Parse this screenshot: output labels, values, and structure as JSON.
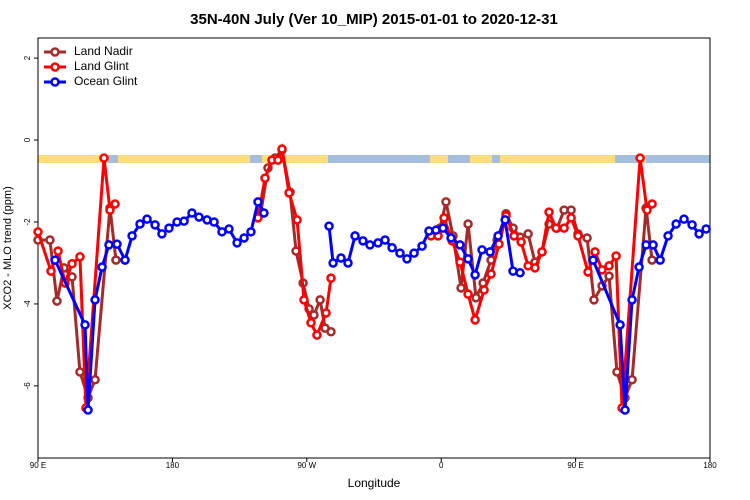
{
  "chart_data": {
    "type": "line",
    "title": "35N-40N July (Ver 10_MIP)   2015-01-01 to 2020-12-31",
    "xlabel": "Longitude",
    "ylabel": "XCO2 - MLO trend (ppm)",
    "xlim": [
      90,
      540
    ],
    "ylim": [
      -7.76,
      2.49
    ],
    "xticks": [
      {
        "value": 90,
        "label": "90 E"
      },
      {
        "value": 180,
        "label": "180"
      },
      {
        "value": 270,
        "label": "90 W"
      },
      {
        "value": 360,
        "label": "0"
      },
      {
        "value": 450,
        "label": "90 E"
      },
      {
        "value": 540,
        "label": "180"
      }
    ],
    "yticks": [
      -6,
      -4,
      -2,
      0,
      2
    ],
    "legend": "topleft",
    "series": [
      {
        "name": "Land Nadir",
        "color": "#a52a2a",
        "x": [
          90,
          98.0,
          102.7,
          107.4,
          112.8,
          118.1,
          123.5,
          128.2,
          138.2,
          142.2,
          null,
          239.3,
          244.0,
          248.7,
          253.4,
          258.8,
          262.8,
          267.5,
          271.5,
          274.8,
          278.9,
          282.2,
          286.2,
          null,
          353.9,
          359.2,
          363.2,
          367.9,
          373.3,
          378.0,
          383.3,
          388.0,
          393.4,
          397.4,
          403.4,
          408.1,
          412.8,
          418.2,
          422.8,
          427.5,
          432.2,
          437.6,
          442.3,
          447.0,
          451.6,
          457.7,
          462.3,
          467.7,
          472.4,
          477.7,
          483.1,
          487.8,
          497.2,
          501.2
        ],
        "values": [
          -2.44,
          -2.44,
          -3.93,
          -3.12,
          -3.34,
          -5.66,
          -6.29,
          -5.85,
          -1.66,
          -2.93,
          null,
          -1.76,
          -0.68,
          -0.44,
          -0.24,
          -1.27,
          -2.71,
          -3.49,
          -4.12,
          -4.27,
          -3.9,
          -4.59,
          -4.68,
          null,
          -2.29,
          -2.15,
          -1.51,
          -2.34,
          -3.61,
          -2.05,
          -3.85,
          -3.49,
          -2.93,
          -2.44,
          -1.8,
          -2.15,
          -2.37,
          -2.29,
          -2.98,
          -2.73,
          -2.05,
          -2.15,
          -1.71,
          -1.71,
          -2.29,
          -2.39,
          -3.9,
          -3.56,
          -3.32,
          -5.66,
          -6.29,
          -5.85,
          -1.66,
          -2.93
        ]
      },
      {
        "name": "Land Glint",
        "color": "#ff0000",
        "x": [
          90,
          98.7,
          103.4,
          108.1,
          112.8,
          118.1,
          122.1,
          134.2,
          138.2,
          141.6,
          null,
          237.3,
          242.0,
          246.7,
          250.7,
          253.4,
          258.1,
          263.5,
          268.1,
          272.8,
          276.8,
          282.9,
          286.2,
          null,
          353.2,
          357.9,
          361.9,
          367.3,
          372.6,
          378.0,
          382.7,
          388.7,
          393.4,
          398.7,
          403.4,
          408.8,
          413.5,
          418.2,
          422.8,
          427.5,
          432.2,
          436.9,
          442.3,
          447.0,
          451.6,
          458.3,
          463.0,
          467.7,
          472.4,
          477.1,
          481.1,
          493.2,
          497.8,
          501.2
        ],
        "values": [
          -2.24,
          -3.2,
          -2.71,
          -3.49,
          -3.02,
          -2.85,
          -6.54,
          -0.44,
          -1.71,
          -1.56,
          null,
          -1.9,
          -0.93,
          -0.49,
          -0.49,
          -0.22,
          -1.29,
          -1.95,
          -3.9,
          -4.46,
          -4.76,
          -4.22,
          -3.37,
          null,
          -2.34,
          -2.34,
          -1.9,
          -2.46,
          -2.98,
          -3.76,
          -4.39,
          -3.66,
          -3.27,
          -2.54,
          -1.85,
          -2.34,
          -2.49,
          -3.07,
          -3.12,
          -2.73,
          -1.76,
          -2.15,
          -2.15,
          -1.9,
          -2.34,
          -3.22,
          -2.73,
          -3.17,
          -3.07,
          -2.83,
          -6.54,
          -0.44,
          -1.71,
          -1.56
        ]
      },
      {
        "name": "Ocean Glint",
        "color": "#0000ff",
        "x": [
          101.4,
          121.5,
          123.5,
          128.2,
          132.9,
          137.5,
          142.9,
          148.3,
          153.0,
          158.3,
          163.0,
          168.4,
          173.0,
          177.7,
          183.1,
          187.8,
          193.1,
          197.8,
          203.2,
          207.9,
          213.2,
          217.9,
          223.3,
          228.0,
          232.6,
          237.3,
          241.3,
          null,
          284.9,
          287.6,
          292.9,
          297.6,
          302.3,
          307.6,
          312.3,
          317.7,
          322.4,
          327.1,
          332.4,
          337.1,
          341.8,
          347.2,
          351.8,
          356.5,
          361.2,
          366.6,
          372.6,
          378.0,
          382.7,
          387.3,
          392.7,
          398.1,
          402.8,
          408.1,
          412.8,
          null,
          461.7,
          479.8,
          483.1,
          487.8,
          492.5,
          497.2,
          501.9,
          506.6,
          511.9,
          517.3,
          522.6,
          528.0,
          532.7,
          537.4
        ],
        "values": [
          -2.93,
          -4.51,
          -6.59,
          -3.9,
          -3.1,
          -2.56,
          -2.54,
          -2.93,
          -2.34,
          -2.05,
          -1.93,
          -2.07,
          -2.29,
          -2.15,
          -2.0,
          -1.98,
          -1.78,
          -1.88,
          -1.95,
          -2.0,
          -2.24,
          -2.17,
          -2.51,
          -2.39,
          -2.24,
          -1.51,
          -1.78,
          null,
          -2.1,
          -3.0,
          -2.88,
          -3.0,
          -2.34,
          -2.46,
          -2.56,
          -2.51,
          -2.44,
          -2.63,
          -2.76,
          -2.9,
          -2.76,
          -2.59,
          -2.22,
          -2.2,
          -2.15,
          -2.39,
          -2.56,
          -2.9,
          -3.29,
          -2.68,
          -2.73,
          -2.34,
          -1.95,
          -3.2,
          -3.24,
          null,
          -2.93,
          -4.51,
          -6.59,
          -3.9,
          -3.1,
          -2.56,
          -2.56,
          -2.93,
          -2.34,
          -2.05,
          -1.93,
          -2.07,
          -2.29,
          -2.17
        ]
      }
    ]
  }
}
